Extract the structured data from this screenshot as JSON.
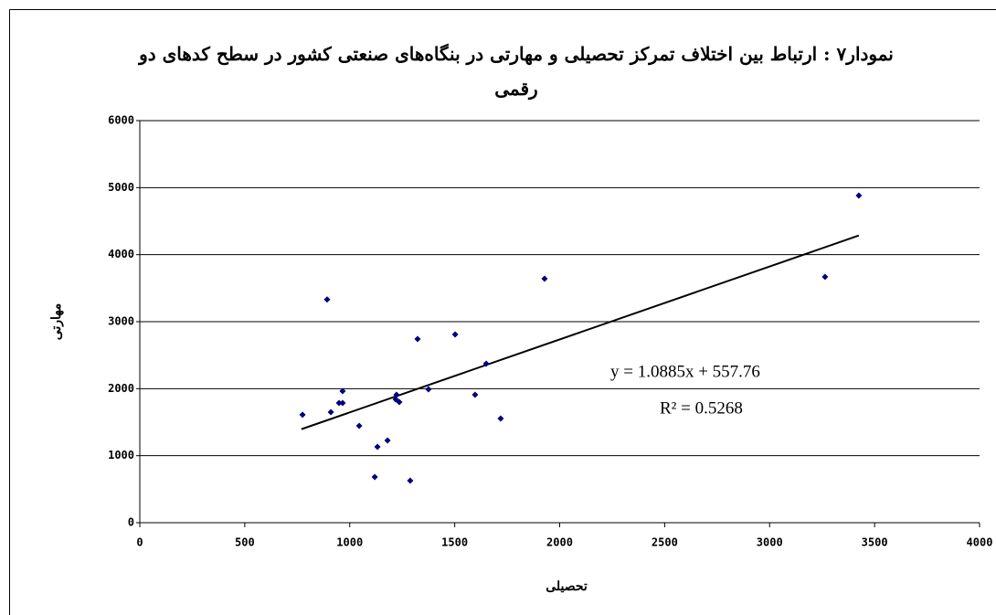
{
  "chart_data": {
    "type": "scatter",
    "title": "نمودار۷ : ارتباط بین اختلاف تمرکز تحصیلی و مهارتی در بنگاه‌های صنعتی کشور در سطح کدهای دو رقمی",
    "x_label": "تحصیلی",
    "y_label": "مهارتی",
    "x": [
      775,
      892,
      910,
      949,
      966,
      966,
      1045,
      1119,
      1132,
      1180,
      1219,
      1223,
      1236,
      1288,
      1323,
      1375,
      1502,
      1597,
      1650,
      1719,
      1928,
      3264,
      3425
    ],
    "series": [
      {
        "name": "مهارتی",
        "color": "#000080",
        "values": [
          1610,
          3330,
          1650,
          1786,
          1786,
          1964,
          1445,
          682,
          1132,
          1227,
          1841,
          1909,
          1800,
          627,
          2741,
          1991,
          2809,
          1909,
          2373,
          1555,
          3641,
          3668,
          4882
        ]
      }
    ],
    "trendline": {
      "color": "#000000",
      "x": [
        770,
        3425
      ],
      "values": [
        1396,
        4286
      ]
    },
    "annotations": [
      "y = 1.0885x + 557.76",
      "R² = 0.5268"
    ],
    "xlim": [
      0,
      4000
    ],
    "xticks": [
      0,
      500,
      1000,
      1500,
      2000,
      2500,
      3000,
      3500,
      4000
    ],
    "ylim": [
      0,
      6000
    ],
    "yticks": [
      0,
      1000,
      2000,
      3000,
      4000,
      5000,
      6000
    ],
    "grid": true
  }
}
